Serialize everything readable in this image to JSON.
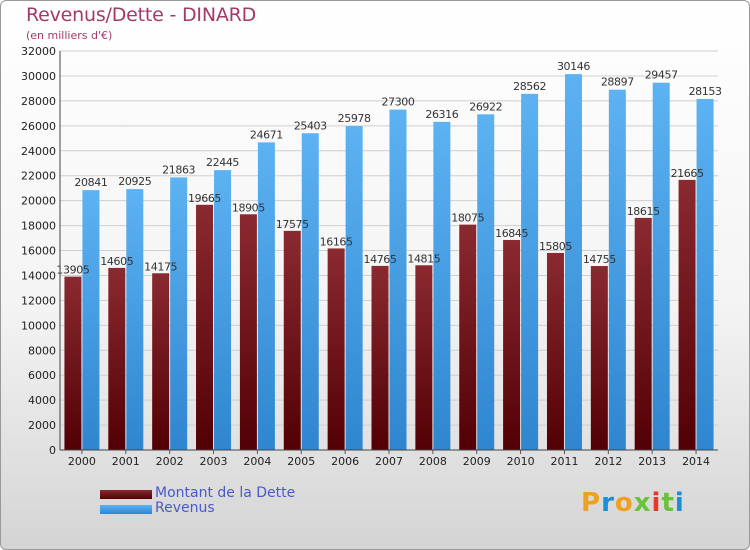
{
  "title": "Revenus/Dette - DINARD",
  "subtitle": "(en milliers d'€)",
  "legend": {
    "debt_label": "Montant de la Dette",
    "revenue_label": "Revenus"
  },
  "logo": {
    "text": "Proxiti"
  },
  "colors": {
    "debt": "#7b1c22",
    "revenue": "#4aa3e8",
    "title": "#a23a6a",
    "legend_text": "#4a58d0"
  },
  "chart_data": {
    "type": "bar",
    "title": "Revenus/Dette - DINARD",
    "subtitle": "(en milliers d'€)",
    "categories": [
      "2000",
      "2001",
      "2002",
      "2003",
      "2004",
      "2005",
      "2006",
      "2007",
      "2008",
      "2009",
      "2010",
      "2011",
      "2012",
      "2013",
      "2014"
    ],
    "series": [
      {
        "name": "Montant de la Dette",
        "values": [
          13905,
          14605,
          14175,
          19665,
          18905,
          17575,
          16165,
          14765,
          14815,
          18075,
          16845,
          15805,
          14755,
          18615,
          21665
        ],
        "labels": [
          "13905",
          "14605",
          "14175",
          "19665",
          "18905",
          "17575",
          "16165",
          "14765",
          "14815",
          "18075",
          "16845",
          "15805",
          "14755",
          "18615",
          "21665"
        ]
      },
      {
        "name": "Revenus",
        "values": [
          20841,
          20925,
          21863,
          22445,
          24671,
          25403,
          25978,
          27300,
          26316,
          26922,
          28562,
          30146,
          28897,
          29457,
          28153
        ],
        "labels": [
          "20841",
          "20925",
          "21863",
          "22445",
          "24671",
          "25403",
          "25978",
          "27300",
          "26316",
          "26922",
          "28562",
          "30146",
          "28897",
          "29457",
          "28153"
        ]
      }
    ],
    "ylim": [
      0,
      32000
    ],
    "yticks": [
      "0",
      "2000",
      "4000",
      "6000",
      "8000",
      "10000",
      "12000",
      "14000",
      "16000",
      "18000",
      "20000",
      "22000",
      "24000",
      "26000",
      "28000",
      "30000",
      "32000"
    ],
    "grid": true,
    "legend_position": "bottom-left"
  }
}
